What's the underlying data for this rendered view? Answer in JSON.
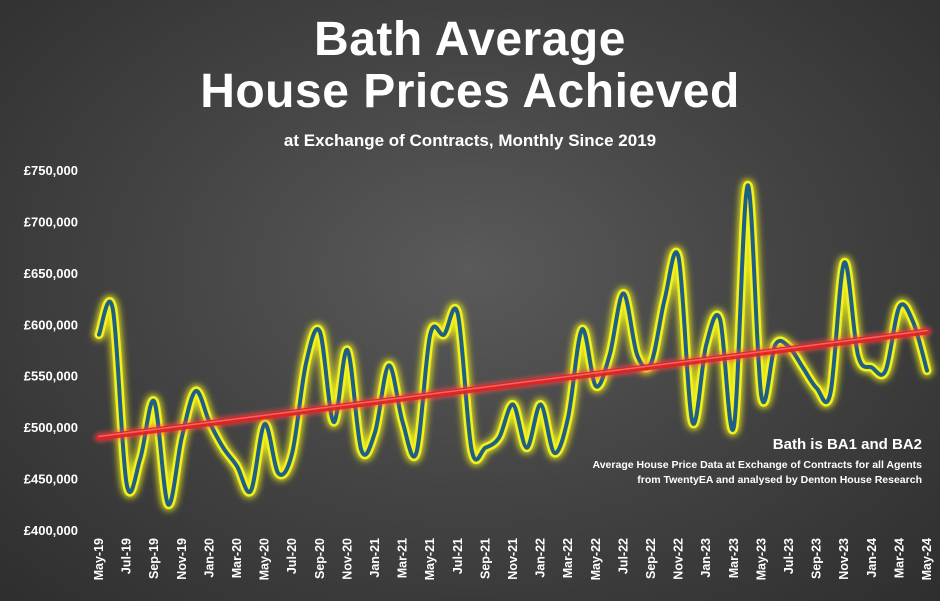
{
  "title_line1": "Bath Average",
  "title_line2": "House Prices Achieved",
  "subtitle": "at Exchange of Contracts, Monthly Since 2019",
  "note": {
    "heading": "Bath is BA1 and BA2",
    "line1": "Average House Price Data at Exchange of Contracts for all Agents",
    "line2": "from TwentyEA and analysed by Denton House Research"
  },
  "colors": {
    "line": "#1f5f86",
    "glow": "#f2f21a",
    "trend": "#e02222",
    "text": "#ffffff"
  },
  "chart_data": {
    "type": "line",
    "title": "Bath Average House Prices Achieved",
    "subtitle": "at Exchange of Contracts, Monthly Since 2019",
    "xlabel": "",
    "ylabel": "",
    "ylim": [
      400000,
      750000
    ],
    "yticks": [
      400000,
      450000,
      500000,
      550000,
      600000,
      650000,
      700000,
      750000
    ],
    "ytick_labels": [
      "£400,000",
      "£450,000",
      "£500,000",
      "£550,000",
      "£600,000",
      "£650,000",
      "£700,000",
      "£750,000"
    ],
    "xtick_labels": [
      "May-19",
      "Jul-19",
      "Sep-19",
      "Nov-19",
      "Jan-20",
      "Mar-20",
      "May-20",
      "Jul-20",
      "Sep-20",
      "Nov-20",
      "Jan-21",
      "Mar-21",
      "May-21",
      "Jul-21",
      "Sep-21",
      "Nov-21",
      "Jan-22",
      "Mar-22",
      "May-22",
      "Jul-22",
      "Sep-22",
      "Nov-22",
      "Jan-23",
      "Mar-23",
      "May-23",
      "Jul-23",
      "Sep-23",
      "Nov-23",
      "Jan-24",
      "Mar-24",
      "May-24"
    ],
    "grid": false,
    "legend": "none",
    "series": [
      {
        "values": [
          590000,
          615000,
          445000,
          470000,
          525000,
          425000,
          490000,
          535000,
          505000,
          480000,
          462000,
          438000,
          503000,
          455000,
          475000,
          562000,
          593000,
          505000,
          575000,
          478000,
          495000,
          560000,
          505000,
          475000,
          590000,
          590000,
          610000,
          478000,
          480000,
          490000,
          522000,
          480000,
          522000,
          475000,
          510000,
          595000,
          540000,
          570000,
          630000,
          570000,
          562000,
          625000,
          665000,
          505000,
          580000,
          605000,
          500000,
          735000,
          530000,
          580000,
          578000,
          558000,
          538000,
          533000,
          660000,
          570000,
          558000,
          555000,
          617000,
          602000,
          555000
        ]
      }
    ],
    "trendline": {
      "start": 490000,
      "end": 593000
    }
  }
}
